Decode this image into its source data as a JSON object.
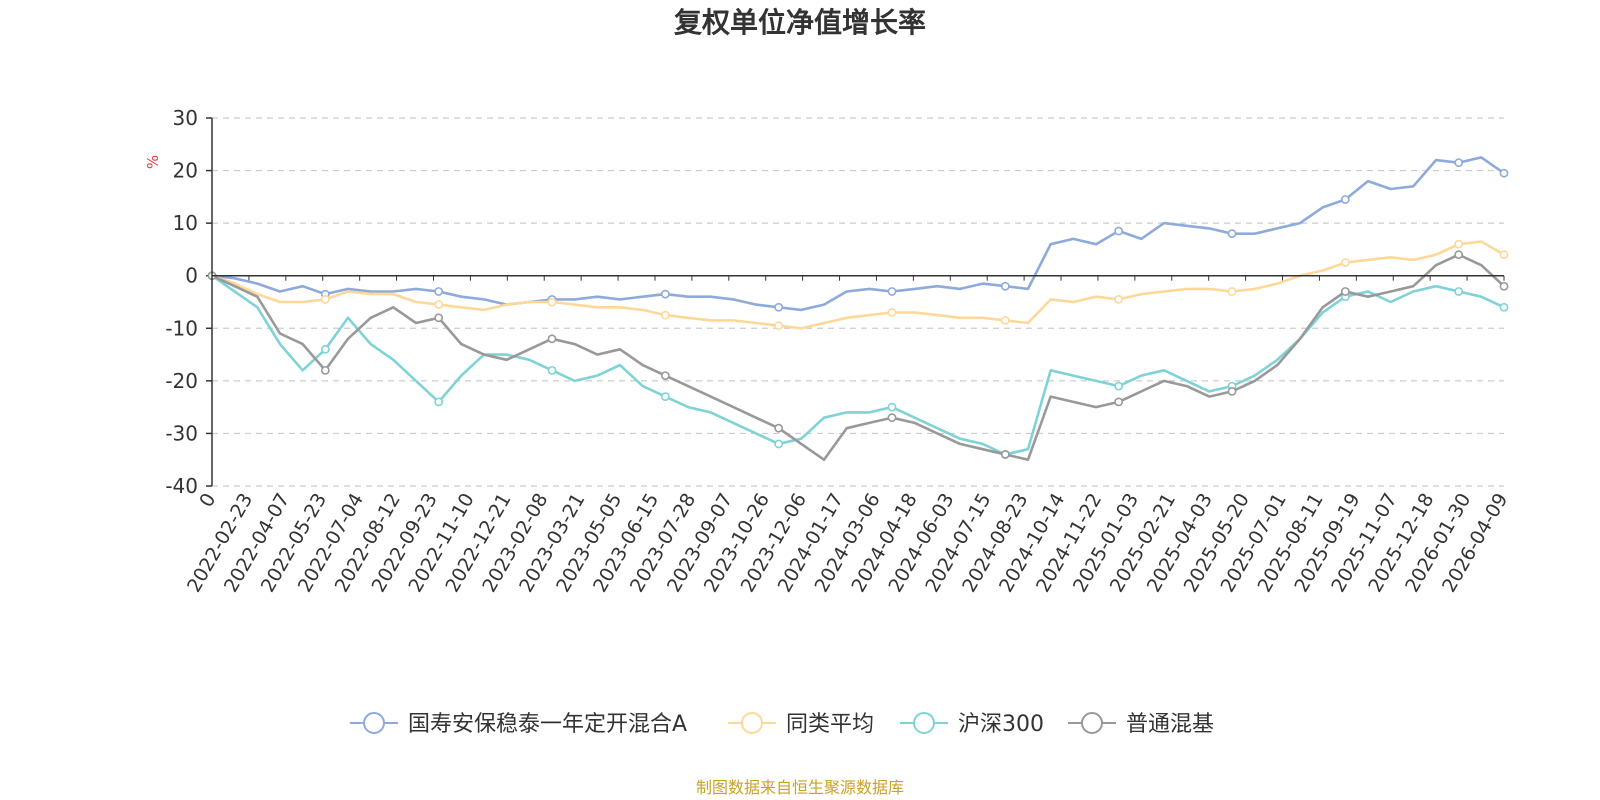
{
  "chart_data": {
    "type": "line",
    "title": "复权单位净值增长率",
    "ylabel": "%",
    "ylim": [
      -40,
      30
    ],
    "yticks": [
      30,
      20,
      10,
      0,
      -10,
      -20,
      -30,
      -40
    ],
    "x_tick_labels": [
      "0",
      "2022-02-23",
      "2022-04-07",
      "2022-05-23",
      "2022-07-04",
      "2022-08-12",
      "2022-09-23",
      "2022-11-10",
      "2022-12-21",
      "2023-02-08",
      "2023-03-21",
      "2023-05-05",
      "2023-06-15",
      "2023-07-28",
      "2023-09-07",
      "2023-10-26",
      "2023-12-06",
      "2024-01-17",
      "2024-03-06",
      "2024-04-18",
      "2024-06-03",
      "2024-07-15",
      "2024-08-23",
      "2024-10-14",
      "2024-11-22",
      "2025-01-03",
      "2025-02-21",
      "2025-04-03",
      "2025-05-20",
      "2025-07-01",
      "2025-08-11",
      "2025-09-19",
      "2025-11-07",
      "2025-12-18",
      "2026-01-30",
      "2026-04-09"
    ],
    "source": "制图数据来自恒生聚源数据库",
    "series": [
      {
        "name": "国寿安保稳泰一年定开混合A",
        "color": "#8eaadb",
        "values": [
          0,
          -0.5,
          -1.5,
          -3,
          -2,
          -3.5,
          -2.5,
          -3,
          -3,
          -2.5,
          -3,
          -4,
          -4.5,
          -5.5,
          -5,
          -4.5,
          -4.5,
          -4,
          -4.5,
          -4,
          -3.5,
          -4,
          -4,
          -4.5,
          -5.5,
          -6,
          -6.5,
          -5.5,
          -3,
          -2.5,
          -3,
          -2.5,
          -2,
          -2.5,
          -1.5,
          -2,
          -2.5,
          6,
          7,
          6,
          8.5,
          7,
          10,
          9.5,
          9,
          8,
          8,
          9,
          10,
          13,
          14.5,
          18,
          16.5,
          17,
          22,
          21.5,
          22.5,
          19.5
        ]
      },
      {
        "name": "同类平均",
        "color": "#ffd899",
        "values": [
          0,
          -1.5,
          -3.5,
          -5,
          -5,
          -4.5,
          -3,
          -3.5,
          -3.5,
          -5,
          -5.5,
          -6,
          -6.5,
          -5.5,
          -5,
          -5,
          -5.5,
          -6,
          -6,
          -6.5,
          -7.5,
          -8,
          -8.5,
          -8.5,
          -9,
          -9.5,
          -10,
          -9,
          -8,
          -7.5,
          -7,
          -7,
          -7.5,
          -8,
          -8,
          -8.5,
          -9,
          -4.5,
          -5,
          -4,
          -4.5,
          -3.5,
          -3,
          -2.5,
          -2.5,
          -3,
          -2.5,
          -1.5,
          0,
          1,
          2.5,
          3,
          3.5,
          3,
          4,
          6,
          6.5,
          4
        ]
      },
      {
        "name": "沪深300",
        "color": "#7fd3d6",
        "values": [
          0,
          -3,
          -6,
          -13,
          -18,
          -14,
          -8,
          -13,
          -16,
          -20,
          -24,
          -19,
          -15,
          -15,
          -16,
          -18,
          -20,
          -19,
          -17,
          -21,
          -23,
          -25,
          -26,
          -28,
          -30,
          -32,
          -31,
          -27,
          -26,
          -26,
          -25,
          -27,
          -29,
          -31,
          -32,
          -34,
          -33,
          -18,
          -19,
          -20,
          -21,
          -19,
          -18,
          -20,
          -22,
          -21,
          -19,
          -16,
          -12,
          -7,
          -4,
          -3,
          -5,
          -3,
          -2,
          -3,
          -4,
          -6
        ]
      },
      {
        "name": "普通混基",
        "color": "#999999",
        "values": [
          0,
          -2,
          -4,
          -11,
          -13,
          -18,
          -12,
          -8,
          -6,
          -9,
          -8,
          -13,
          -15,
          -16,
          -14,
          -12,
          -13,
          -15,
          -14,
          -17,
          -19,
          -21,
          -23,
          -25,
          -27,
          -29,
          -32,
          -35,
          -29,
          -28,
          -27,
          -28,
          -30,
          -32,
          -33,
          -34,
          -35,
          -23,
          -24,
          -25,
          -24,
          -22,
          -20,
          -21,
          -23,
          -22,
          -20,
          -17,
          -12,
          -6,
          -3,
          -4,
          -3,
          -2,
          2,
          4,
          2,
          -2
        ]
      }
    ]
  }
}
